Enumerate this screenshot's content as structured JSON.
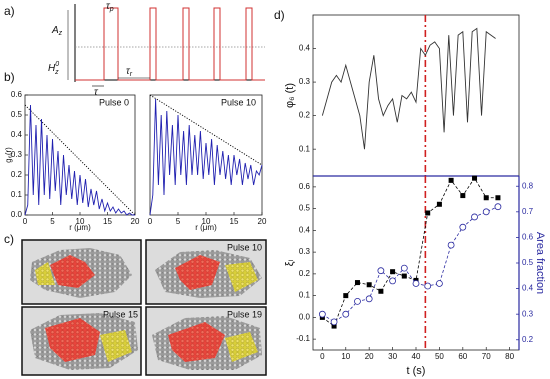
{
  "panel_labels": [
    "a)",
    "b)",
    "c)",
    "d)"
  ],
  "pulse_diagram": {
    "labels": [
      {
        "text": "τ",
        "sub": "p"
      },
      {
        "text": "A",
        "sub": "z"
      },
      {
        "text": "H",
        "sub": "z",
        "sup": "0"
      },
      {
        "text": "τ"
      },
      {
        "text": "τ",
        "sub": "r"
      }
    ]
  },
  "images": [
    {},
    {
      "label": "Pulse 10"
    },
    {
      "label": "Pulse 15"
    },
    {
      "label": "Pulse 19"
    }
  ],
  "chart_data": [
    {
      "type": "line",
      "annotation": "Pulse 0",
      "xlabel": "r (μm)",
      "ylabel": "g₆(r)",
      "x": [
        0,
        0.5,
        1,
        1.5,
        2,
        2.5,
        3,
        3.5,
        4,
        4.5,
        5,
        5.5,
        6,
        6.5,
        7,
        7.5,
        8,
        8.5,
        9,
        9.5,
        10,
        10.5,
        11,
        11.5,
        12,
        12.5,
        13,
        13.5,
        14,
        14.5,
        15,
        15.5,
        16,
        16.5,
        17,
        17.5,
        18,
        18.5,
        19,
        19.5,
        20
      ],
      "series": [
        {
          "color": "#2020b0",
          "values": [
            0.0,
            0.05,
            0.55,
            0.1,
            0.45,
            0.05,
            0.48,
            0.1,
            0.4,
            0.08,
            0.38,
            0.12,
            0.32,
            0.05,
            0.3,
            0.1,
            0.25,
            0.08,
            0.22,
            0.05,
            0.2,
            0.06,
            0.18,
            0.04,
            0.13,
            0.05,
            0.12,
            0.03,
            0.08,
            0.02,
            0.06,
            0.02,
            0.04,
            0.01,
            0.03,
            0.01,
            0.02,
            0.0,
            0.01,
            0.0,
            0.0
          ]
        }
      ],
      "envelope": {
        "x": [
          0,
          20
        ],
        "values": [
          0.55,
          0.0
        ]
      },
      "xlim": [
        0,
        20
      ],
      "ylim": [
        0,
        0.6
      ],
      "xticks": [
        0,
        5,
        10,
        15,
        20
      ],
      "yticks": [
        {
          "value": 0,
          "label": "0.0"
        },
        0.1,
        0.2,
        0.3,
        0.4,
        0.5,
        0.6
      ]
    },
    {
      "type": "line",
      "annotation": "Pulse 10",
      "xlabel": "r (μm)",
      "x": [
        0,
        0.5,
        1,
        1.5,
        2,
        2.5,
        3,
        3.5,
        4,
        4.5,
        5,
        5.5,
        6,
        6.5,
        7,
        7.5,
        8,
        8.5,
        9,
        9.5,
        10,
        10.5,
        11,
        11.5,
        12,
        12.5,
        13,
        13.5,
        14,
        14.5,
        15,
        15.5,
        16,
        16.5,
        17,
        17.5,
        18,
        18.5,
        19,
        19.5,
        20
      ],
      "series": [
        {
          "color": "#2020b0",
          "values": [
            0.0,
            0.1,
            0.58,
            0.15,
            0.5,
            0.1,
            0.52,
            0.2,
            0.45,
            0.15,
            0.5,
            0.2,
            0.42,
            0.15,
            0.45,
            0.2,
            0.4,
            0.2,
            0.42,
            0.18,
            0.36,
            0.2,
            0.38,
            0.15,
            0.35,
            0.2,
            0.32,
            0.18,
            0.3,
            0.15,
            0.3,
            0.2,
            0.28,
            0.15,
            0.26,
            0.18,
            0.25,
            0.15,
            0.22,
            0.2,
            0.25
          ]
        }
      ],
      "envelope": {
        "x": [
          0,
          20
        ],
        "values": [
          0.6,
          0.25
        ]
      },
      "xlim": [
        0,
        20
      ],
      "ylim": [
        0,
        0.6
      ],
      "xticks": [
        0,
        5,
        10,
        15,
        20
      ]
    },
    {
      "type": "line",
      "ylabel": "φ₆ (t)",
      "x": [
        0,
        2,
        4,
        6,
        8,
        10,
        12,
        14,
        16,
        18,
        20,
        22,
        24,
        26,
        28,
        30,
        32,
        34,
        36,
        38,
        40,
        42,
        44,
        46,
        48,
        50,
        52,
        54,
        56,
        58,
        60,
        62,
        64,
        66,
        68,
        70,
        72,
        74
      ],
      "series": [
        {
          "color": "#333333",
          "values": [
            0.2,
            0.25,
            0.3,
            0.32,
            0.3,
            0.35,
            0.3,
            0.25,
            0.2,
            0.1,
            0.3,
            0.38,
            0.25,
            0.2,
            0.23,
            0.25,
            0.18,
            0.26,
            0.25,
            0.27,
            0.24,
            0.4,
            0.38,
            0.41,
            0.42,
            0.4,
            0.15,
            0.44,
            0.2,
            0.44,
            0.45,
            0.18,
            0.45,
            0.46,
            0.2,
            0.45,
            0.44,
            0.43
          ]
        }
      ],
      "vline": 44,
      "xlim": [
        -4,
        84
      ],
      "ylim": [
        0.02,
        0.5
      ],
      "yticks": [
        0.1,
        0.2,
        0.3,
        0.4
      ]
    },
    {
      "type": "line",
      "xlabel": "t (s)",
      "ylabel": "ξₗ",
      "y2label": "Area fraction",
      "x": [
        0,
        5,
        10,
        15,
        20,
        25,
        30,
        35,
        40,
        45,
        50,
        55,
        60,
        65,
        70,
        75
      ],
      "series": [
        {
          "color": "#000000",
          "marker": "square",
          "values": [
            0.0,
            -0.04,
            0.1,
            0.16,
            0.15,
            0.12,
            0.21,
            0.19,
            0.17,
            0.48,
            0.52,
            0.63,
            0.56,
            0.64,
            0.55,
            0.55
          ]
        },
        {
          "color": "#2a2aa0",
          "marker": "circle",
          "axis": "y2",
          "values": [
            0.3,
            0.27,
            0.3,
            0.35,
            0.36,
            0.47,
            0.43,
            0.48,
            0.42,
            0.41,
            0.42,
            0.57,
            0.64,
            0.68,
            0.7,
            0.72
          ]
        }
      ],
      "vline": 44,
      "xlim": [
        -4,
        84
      ],
      "ylim": [
        -0.15,
        0.65
      ],
      "y2lim": [
        0.16,
        0.84
      ],
      "xticks": [
        0,
        10,
        20,
        30,
        40,
        50,
        60,
        70,
        80
      ],
      "yticks": [
        -0.1,
        {
          "value": 0,
          "label": "0.0"
        },
        0.1,
        0.2,
        0.3,
        0.4,
        0.5,
        0.6
      ],
      "y2ticks": [
        0.2,
        0.3,
        0.4,
        0.5,
        0.6,
        0.7,
        0.8
      ]
    }
  ]
}
